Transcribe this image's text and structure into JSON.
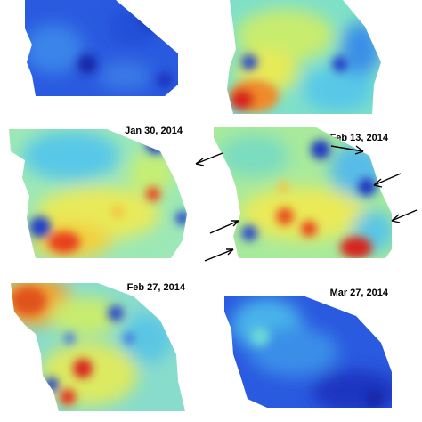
{
  "figure": {
    "panels": [
      {
        "id": "panel-1",
        "date": ""
      },
      {
        "id": "panel-2",
        "date": ""
      },
      {
        "id": "panel-3",
        "date": "Jan 30, 2014"
      },
      {
        "id": "panel-4",
        "date": "Feb 13, 2014"
      },
      {
        "id": "panel-5",
        "date": "Feb 27, 2014"
      },
      {
        "id": "panel-6",
        "date": "Mar 27, 2014"
      }
    ],
    "colormap": {
      "low": "#1a3ccc",
      "mid_low": "#3aa0e8",
      "mid": "#5fd6d0",
      "mid_high": "#f2e24a",
      "high": "#e8401a",
      "peak": "#c8100e"
    }
  }
}
